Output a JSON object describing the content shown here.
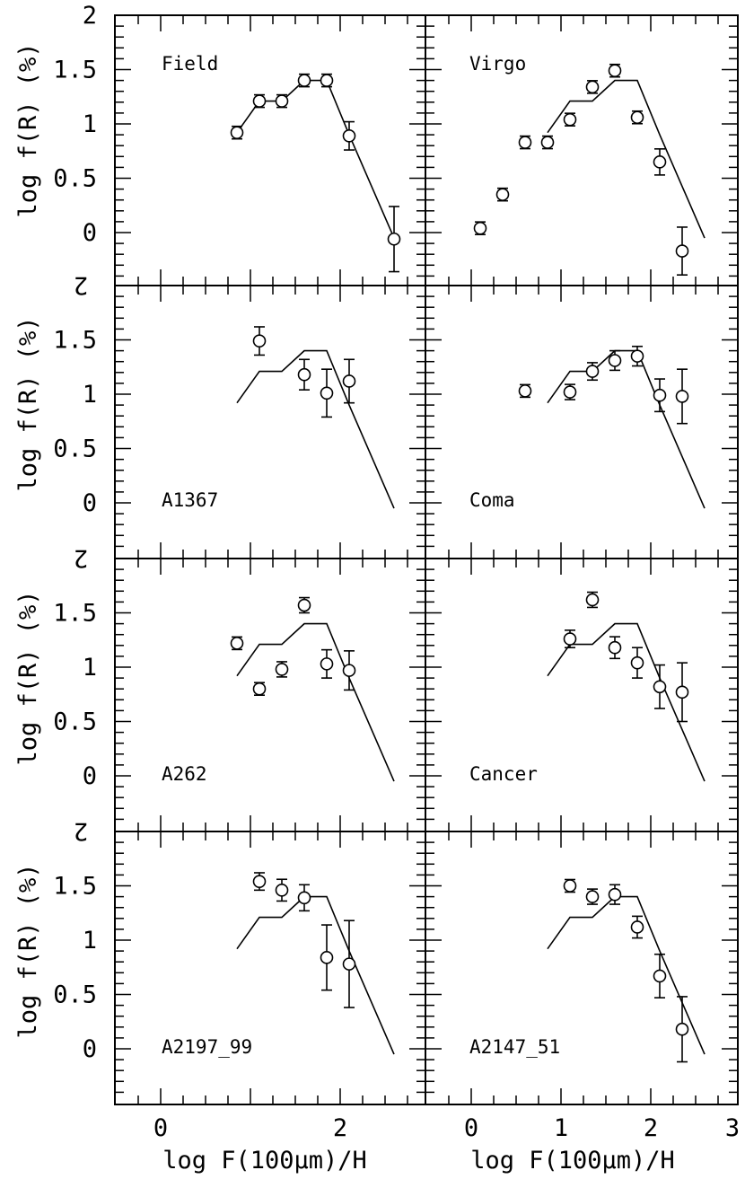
{
  "chart_data": {
    "type": "scatter",
    "grid": false,
    "xlabel": "log F(100μm)/H",
    "ylabel": "log f(R) (%)",
    "xlim": [
      -0.5,
      3.0
    ],
    "ylim": [
      -0.45,
      2.0
    ],
    "x_tick_labels": [
      "0",
      "2",
      "0",
      "1",
      "2",
      "3"
    ],
    "y_tick_labels": [
      "2",
      "1.5",
      "1",
      "0.5",
      "0"
    ],
    "model": {
      "x": [
        0.85,
        1.1,
        1.35,
        1.6,
        1.85,
        2.1,
        2.6
      ],
      "y": [
        0.92,
        1.21,
        1.21,
        1.4,
        1.4,
        0.9,
        -0.05
      ]
    },
    "panels": [
      {
        "label": "Field",
        "x": [
          0.85,
          1.1,
          1.35,
          1.6,
          1.85,
          2.1,
          2.6
        ],
        "y": [
          0.92,
          1.21,
          1.21,
          1.4,
          1.4,
          0.89,
          -0.06
        ],
        "err": [
          0.04,
          0.04,
          0.04,
          0.05,
          0.06,
          0.13,
          0.3
        ]
      },
      {
        "label": "Virgo",
        "x": [
          0.1,
          0.35,
          0.6,
          0.85,
          1.1,
          1.35,
          1.6,
          1.85,
          2.1,
          2.35
        ],
        "y": [
          0.04,
          0.35,
          0.83,
          0.83,
          1.04,
          1.34,
          1.49,
          1.06,
          0.65,
          -0.17
        ],
        "err": [
          0.03,
          0.03,
          0.04,
          0.04,
          0.04,
          0.04,
          0.04,
          0.05,
          0.12,
          0.22
        ]
      },
      {
        "label": "A1367",
        "x": [
          1.1,
          1.6,
          1.85,
          2.1
        ],
        "y": [
          1.49,
          1.18,
          1.01,
          1.12
        ],
        "err": [
          0.13,
          0.14,
          0.22,
          0.2
        ]
      },
      {
        "label": "Coma",
        "x": [
          0.6,
          1.1,
          1.35,
          1.6,
          1.85,
          2.1,
          2.35
        ],
        "y": [
          1.03,
          1.02,
          1.21,
          1.31,
          1.35,
          0.99,
          0.98
        ],
        "err": [
          0.06,
          0.07,
          0.08,
          0.09,
          0.09,
          0.15,
          0.25
        ]
      },
      {
        "label": "A262",
        "x": [
          0.85,
          1.1,
          1.35,
          1.6,
          1.85,
          2.1
        ],
        "y": [
          1.22,
          0.8,
          0.98,
          1.57,
          1.03,
          0.97
        ],
        "err": [
          0.06,
          0.06,
          0.07,
          0.07,
          0.13,
          0.18
        ]
      },
      {
        "label": "Cancer",
        "x": [
          1.1,
          1.35,
          1.6,
          1.85,
          2.1,
          2.35
        ],
        "y": [
          1.26,
          1.62,
          1.18,
          1.04,
          0.82,
          0.77
        ],
        "err": [
          0.08,
          0.07,
          0.1,
          0.14,
          0.2,
          0.27
        ]
      },
      {
        "label": "A2197_99",
        "x": [
          1.1,
          1.35,
          1.6,
          1.85,
          2.1
        ],
        "y": [
          1.54,
          1.46,
          1.39,
          0.84,
          0.78
        ],
        "err": [
          0.08,
          0.1,
          0.12,
          0.3,
          0.4
        ]
      },
      {
        "label": "A2147_51",
        "x": [
          1.1,
          1.35,
          1.6,
          1.85,
          2.1,
          2.35
        ],
        "y": [
          1.5,
          1.4,
          1.42,
          1.12,
          0.67,
          0.18
        ],
        "err": [
          0.06,
          0.07,
          0.09,
          0.1,
          0.2,
          0.3
        ]
      }
    ]
  }
}
